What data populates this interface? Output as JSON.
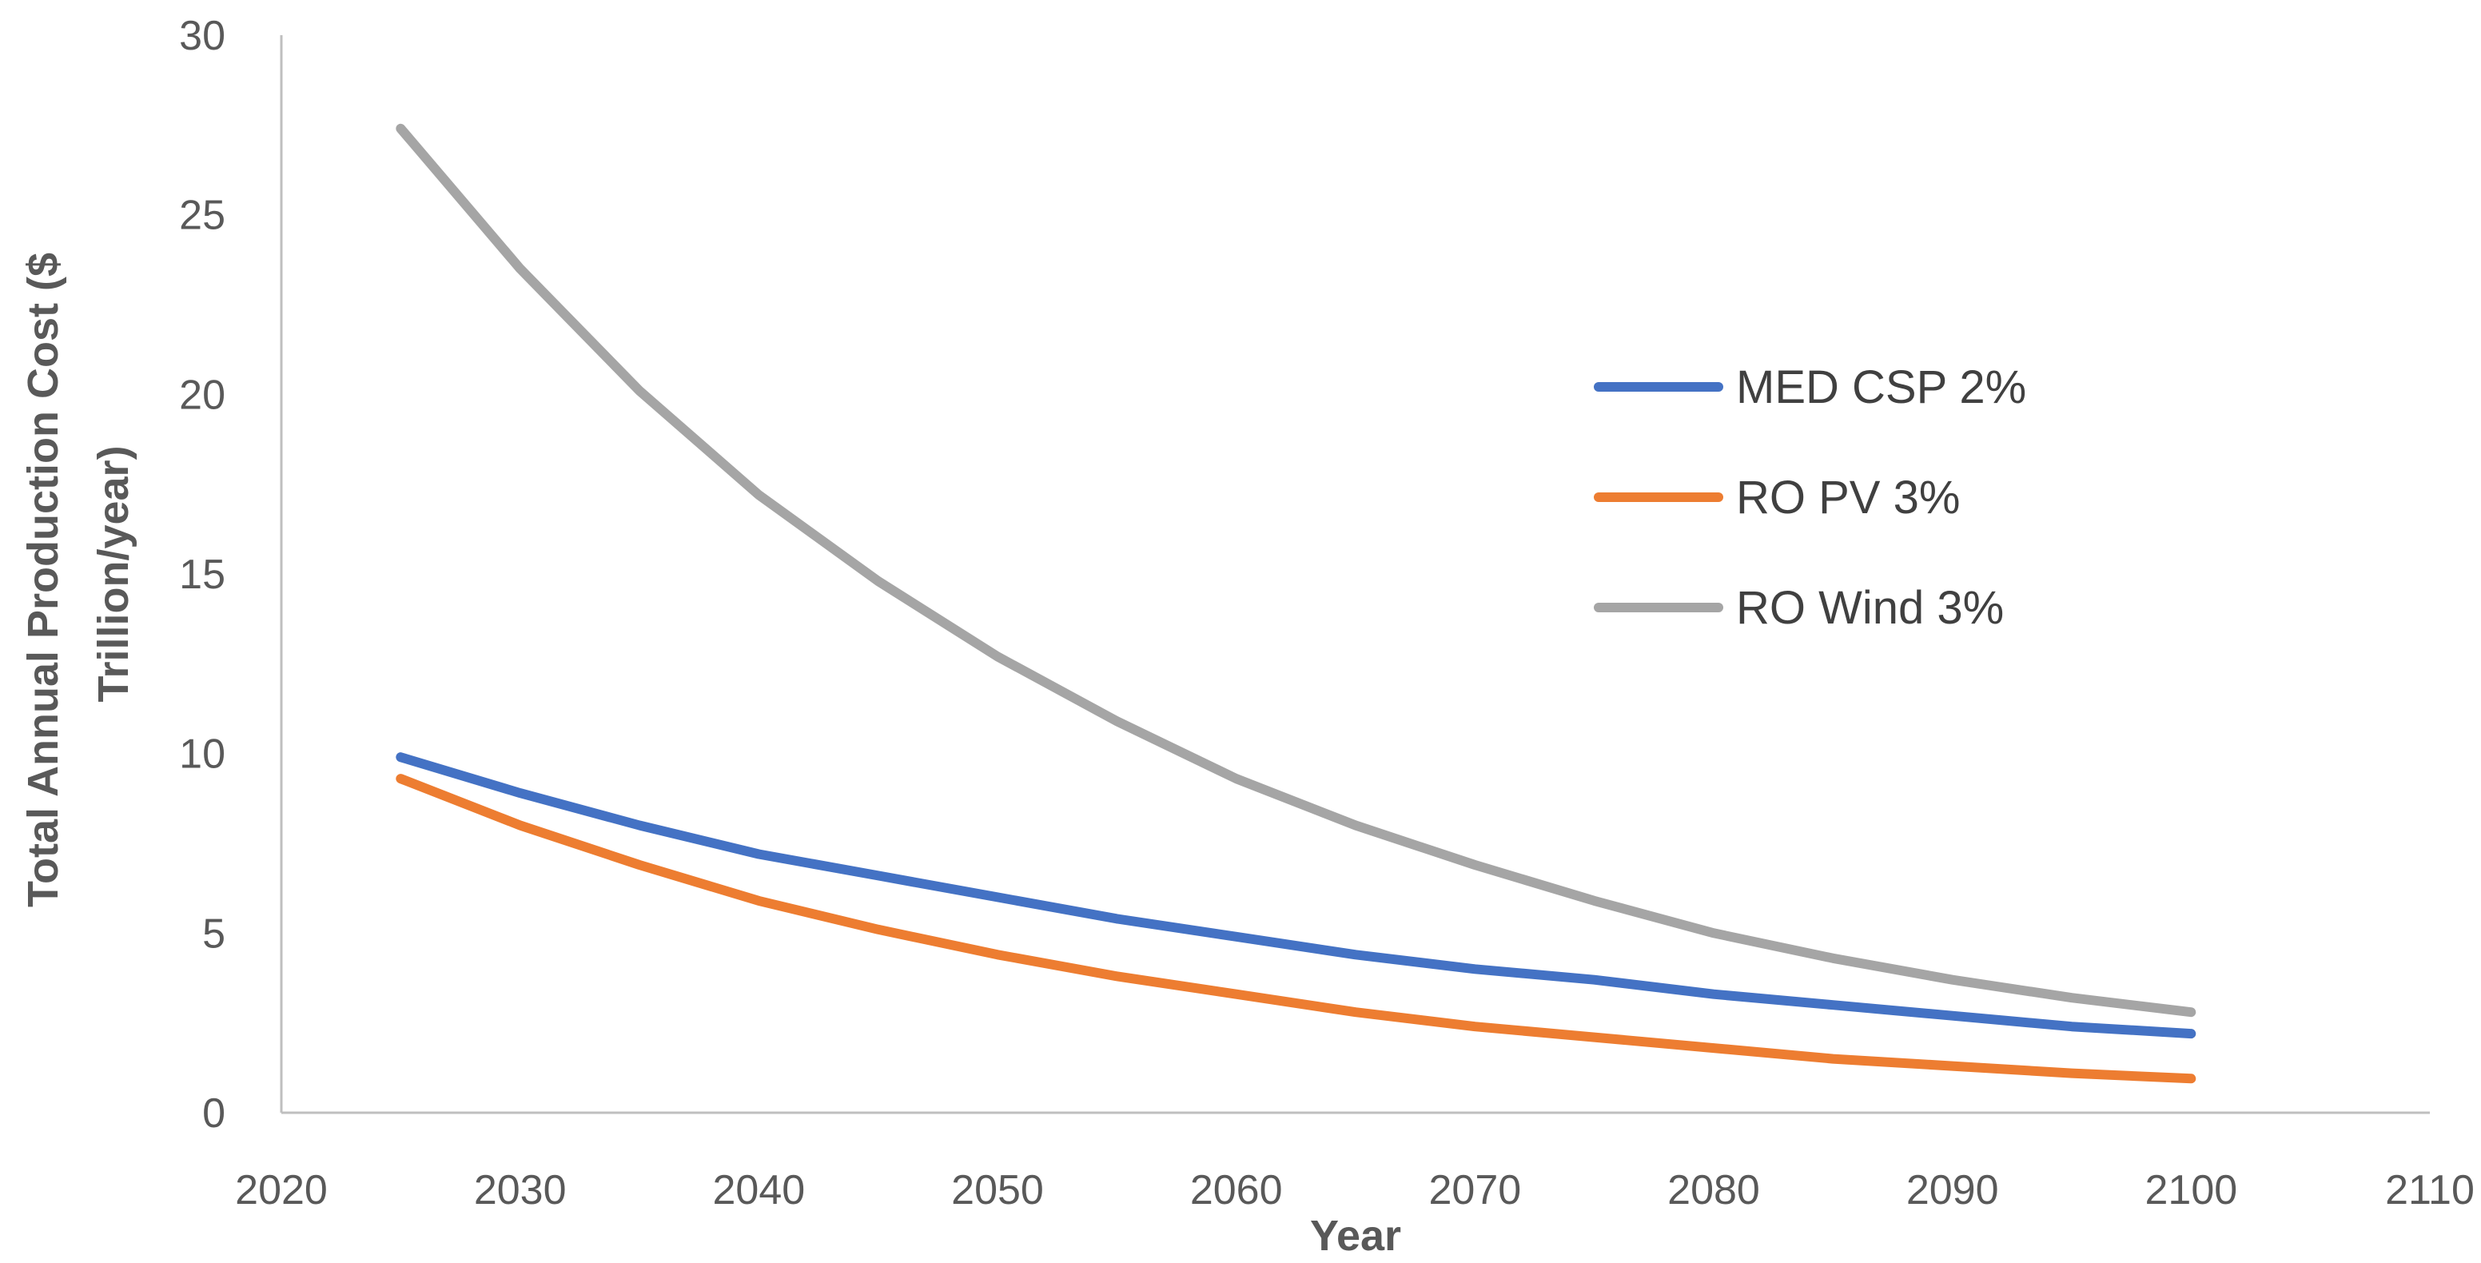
{
  "chart_data": {
    "type": "line",
    "title": "",
    "xlabel": "Year",
    "ylabel": "Total Annual Production Cost ($ Trillion/year)",
    "ylabel_lines": [
      "Total Annual Production Cost ($",
      "Trillion/year)"
    ],
    "xlim": [
      2020,
      2110
    ],
    "ylim": [
      0,
      30
    ],
    "xticks": [
      "2020",
      "2030",
      "2040",
      "2050",
      "2060",
      "2070",
      "2080",
      "2090",
      "2100",
      "2110"
    ],
    "yticks": [
      "0",
      "5",
      "10",
      "15",
      "20",
      "25",
      "30"
    ],
    "grid": false,
    "legend_position": "right",
    "x": [
      2025,
      2030,
      2035,
      2040,
      2045,
      2050,
      2055,
      2060,
      2065,
      2070,
      2075,
      2080,
      2085,
      2090,
      2095,
      2100
    ],
    "series": [
      {
        "name": "MED CSP 2%",
        "color": "#4472c4",
        "values": [
          9.9,
          8.9,
          8.0,
          7.2,
          6.6,
          6.0,
          5.4,
          4.9,
          4.4,
          4.0,
          3.7,
          3.3,
          3.0,
          2.7,
          2.4,
          2.2
        ]
      },
      {
        "name": "RO PV 3%",
        "color": "#ed7d31",
        "values": [
          9.3,
          8.0,
          6.9,
          5.9,
          5.1,
          4.4,
          3.8,
          3.3,
          2.8,
          2.4,
          2.1,
          1.8,
          1.5,
          1.3,
          1.1,
          0.95
        ]
      },
      {
        "name": "RO Wind 3%",
        "color": "#a5a5a5",
        "values": [
          27.4,
          23.5,
          20.1,
          17.2,
          14.8,
          12.7,
          10.9,
          9.3,
          8.0,
          6.9,
          5.9,
          5.0,
          4.3,
          3.7,
          3.2,
          2.8
        ]
      }
    ]
  }
}
